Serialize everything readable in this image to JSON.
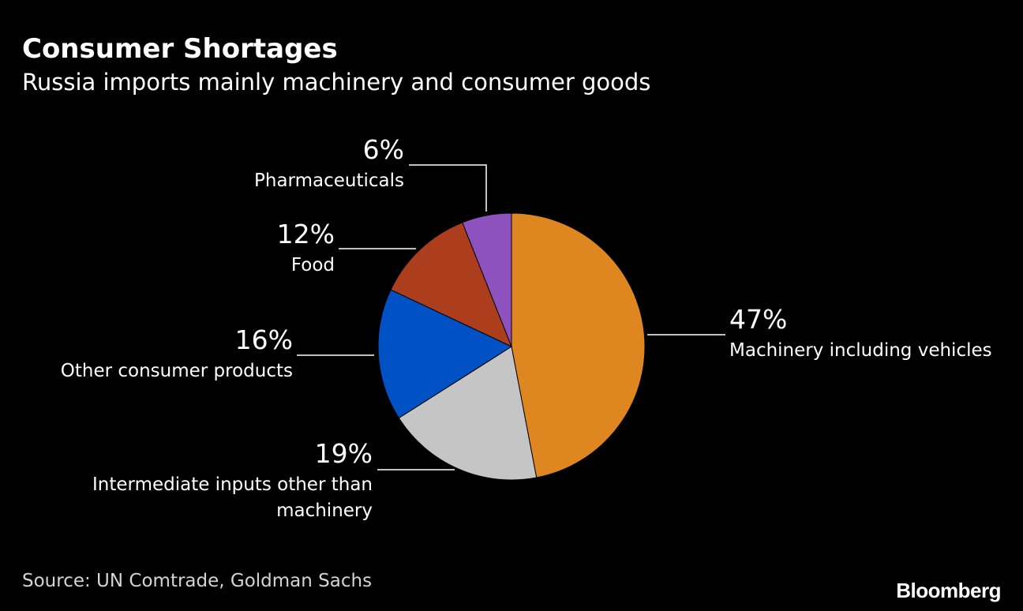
{
  "brand": "Bloomberg",
  "colors": {
    "background": "#000000",
    "text": "#ffffff",
    "leader": "#ffffff"
  },
  "chart_data": {
    "type": "pie",
    "title": "Consumer Shortages",
    "subtitle": "Russia imports mainly machinery and consumer goods",
    "source": "Source: UN Comtrade, Goldman Sachs",
    "legend": "none",
    "slices": [
      {
        "label": "Machinery including vehicles",
        "value": 47,
        "value_label": "47%",
        "color": "#de8721"
      },
      {
        "label": "Intermediate inputs other than machinery",
        "value": 19,
        "value_label": "19%",
        "color": "#c5c5c5"
      },
      {
        "label": "Other consumer products",
        "value": 16,
        "value_label": "16%",
        "color": "#0051c3"
      },
      {
        "label": "Food",
        "value": 12,
        "value_label": "12%",
        "color": "#ad3e1d"
      },
      {
        "label": "Pharmaceuticals",
        "value": 6,
        "value_label": "6%",
        "color": "#8d52bd"
      }
    ]
  }
}
